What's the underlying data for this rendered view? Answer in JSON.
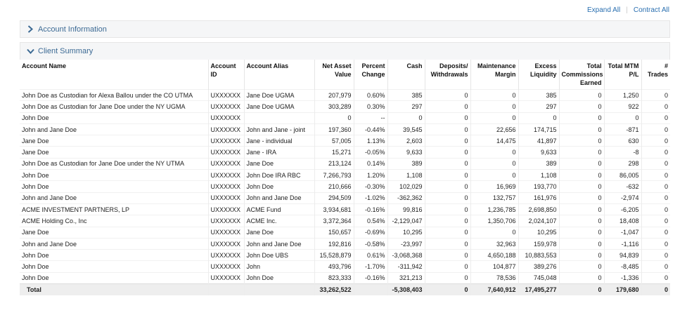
{
  "toplinks": {
    "expand_all": "Expand All",
    "separator": "|",
    "contract_all": "Contract All"
  },
  "sections": {
    "account_info": {
      "label": "Account Information",
      "icon": "chevron-right-icon"
    },
    "client_summary": {
      "label": "Client Summary",
      "icon": "chevron-down-icon"
    }
  },
  "colors": {
    "link": "#2a6fb0",
    "section_text": "#3c6a94",
    "section_bg": "#f5f6f7",
    "total_bg": "#eeeeee"
  },
  "table": {
    "headers": {
      "account_name": "Account Name",
      "account_id": "Account ID",
      "account_alias": "Account Alias",
      "net_asset_value": "Net Asset Value",
      "percent_change": "Percent Change",
      "cash": "Cash",
      "deposits": "Deposits/ Withdrawals",
      "maintenance_margin": "Maintenance Margin",
      "excess_liquidity": "Excess Liquidity",
      "total_commissions": "Total Commissions Earned",
      "total_mtm": "Total MTM P/L",
      "trades": "# Trades"
    },
    "rows": [
      [
        "John Doe as Custodian for Alexa Ballou under the CO UTMA",
        "UXXXXXX",
        "Jane Doe UGMA",
        "207,979",
        "0.60%",
        "385",
        "0",
        "0",
        "385",
        "0",
        "1,250",
        "0"
      ],
      [
        "John Doe as Custodian for Jane Doe under the NY UGMA",
        "UXXXXXX",
        "Jane Doe UGMA",
        "303,289",
        "0.30%",
        "297",
        "0",
        "0",
        "297",
        "0",
        "922",
        "0"
      ],
      [
        "John Doe",
        "UXXXXXX",
        "",
        "0",
        "--",
        "0",
        "0",
        "0",
        "0",
        "0",
        "0",
        "0"
      ],
      [
        "John and Jane Doe",
        "UXXXXXX",
        "John and Jane - joint",
        "197,360",
        "-0.44%",
        "39,545",
        "0",
        "22,656",
        "174,715",
        "0",
        "-871",
        "0"
      ],
      [
        "Jane Doe",
        "UXXXXXX",
        "Jane - individual",
        "57,005",
        "1.13%",
        "2,603",
        "0",
        "14,475",
        "41,897",
        "0",
        "630",
        "0"
      ],
      [
        "Jane Doe",
        "UXXXXXX",
        "Jane - IRA",
        "15,271",
        "-0.05%",
        "9,633",
        "0",
        "0",
        "9,633",
        "0",
        "-8",
        "0"
      ],
      [
        "John Doe as Custodian for Jane Doe under the NY UTMA",
        "UXXXXXX",
        "Jane Doe",
        "213,124",
        "0.14%",
        "389",
        "0",
        "0",
        "389",
        "0",
        "298",
        "0"
      ],
      [
        "John Doe",
        "UXXXXXX",
        "John Doe IRA RBC",
        "7,266,793",
        "1.20%",
        "1,108",
        "0",
        "0",
        "1,108",
        "0",
        "86,005",
        "0"
      ],
      [
        "John Doe",
        "UXXXXXX",
        "John Doe",
        "210,666",
        "-0.30%",
        "102,029",
        "0",
        "16,969",
        "193,770",
        "0",
        "-632",
        "0"
      ],
      [
        "John and Jane Doe",
        "UXXXXXX",
        "John and Jane Doe",
        "294,509",
        "-1.02%",
        "-362,362",
        "0",
        "132,757",
        "161,976",
        "0",
        "-2,974",
        "0"
      ],
      [
        "ACME INVESTMENT PARTNERS, LP",
        "UXXXXXX",
        "ACME Fund",
        "3,934,681",
        "-0.16%",
        "99,816",
        "0",
        "1,236,785",
        "2,698,850",
        "0",
        "-6,205",
        "0"
      ],
      [
        "ACME Holding Co., Inc",
        "UXXXXXX",
        "ACME Inc.",
        "3,372,364",
        "0.54%",
        "-2,129,047",
        "0",
        "1,350,706",
        "2,024,107",
        "0",
        "18,408",
        "0"
      ],
      [
        "Jane Doe",
        "UXXXXXX",
        "Jane Doe",
        "150,657",
        "-0.69%",
        "10,295",
        "0",
        "0",
        "10,295",
        "0",
        "-1,047",
        "0"
      ],
      [
        "John and Jane Doe",
        "UXXXXXX",
        "John and Jane Doe",
        "192,816",
        "-0.58%",
        "-23,997",
        "0",
        "32,963",
        "159,978",
        "0",
        "-1,116",
        "0"
      ],
      [
        "John Doe",
        "UXXXXXX",
        "John Doe UBS",
        "15,528,879",
        "0.61%",
        "-3,068,368",
        "0",
        "4,650,188",
        "10,883,553",
        "0",
        "94,839",
        "0"
      ],
      [
        "John Doe",
        "UXXXXXX",
        "John",
        "493,796",
        "-1.70%",
        "-311,942",
        "0",
        "104,877",
        "389,276",
        "0",
        "-8,485",
        "0"
      ],
      [
        "John Doe",
        "UXXXXXX",
        "John Doe",
        "823,333",
        "-0.16%",
        "321,213",
        "0",
        "78,536",
        "745,048",
        "0",
        "-1,336",
        "0"
      ]
    ],
    "total": [
      "Total",
      "",
      "",
      "33,262,522",
      "",
      "-5,308,403",
      "0",
      "7,640,912",
      "17,495,277",
      "0",
      "179,680",
      "0"
    ]
  }
}
